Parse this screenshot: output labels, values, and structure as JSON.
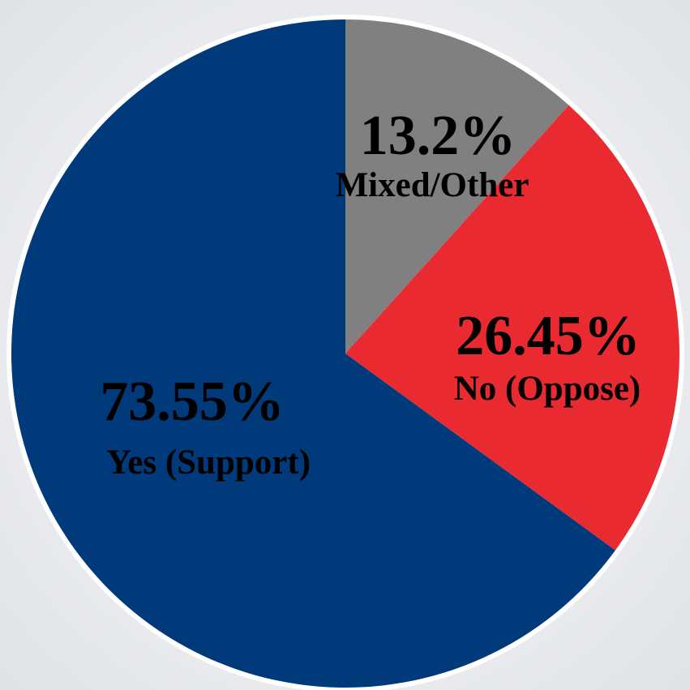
{
  "chart_data": {
    "type": "pie",
    "slices": [
      {
        "label": "Mixed/Other",
        "value_text": "13.2%",
        "value": 13.2,
        "color": "#808080"
      },
      {
        "label": "No (Oppose)",
        "value_text": "26.45%",
        "value": 26.45,
        "color": "#e92a31"
      },
      {
        "label": "Yes (Support)",
        "value_text": "73.55%",
        "value": 73.55,
        "color": "#003a7a"
      }
    ],
    "start": "top",
    "direction": "clockwise"
  }
}
